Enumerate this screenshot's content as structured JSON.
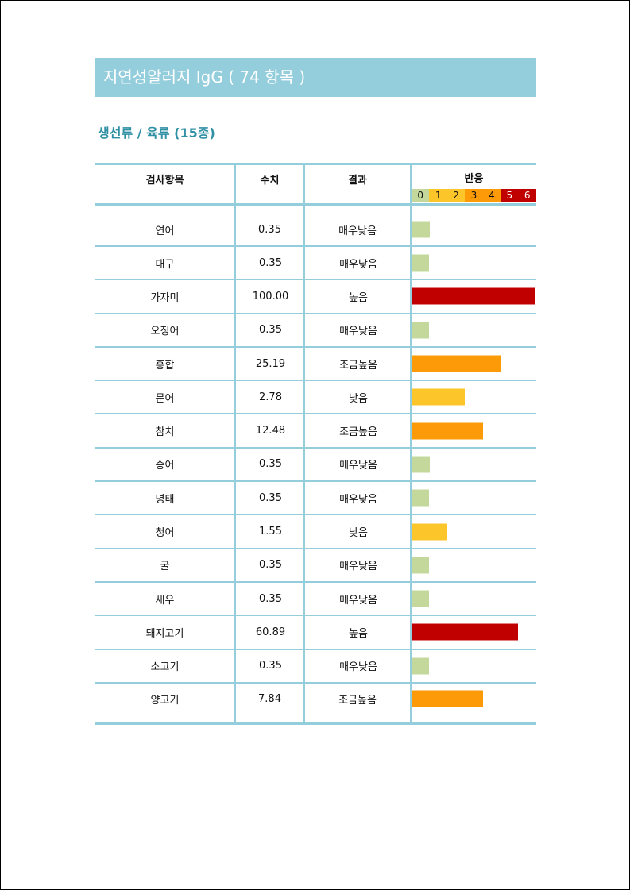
{
  "title": "지연성알러지 IgG ( 74 항목 )",
  "section": "생선류 / 육류 (15종)",
  "headers": {
    "item": "검사항목",
    "value": "수치",
    "result": "결과",
    "reaction": "반응"
  },
  "scale": [
    {
      "label": "0",
      "color": "#c5d89c"
    },
    {
      "label": "1",
      "color": "#fcc62a"
    },
    {
      "label": "2",
      "color": "#fcc62a"
    },
    {
      "label": "3",
      "color": "#fd9a07"
    },
    {
      "label": "4",
      "color": "#fd9a07"
    },
    {
      "label": "5",
      "color": "#c00000",
      "text": "#ffffff"
    },
    {
      "label": "6",
      "color": "#c00000",
      "text": "#ffffff"
    }
  ],
  "rows": [
    {
      "item": "연어",
      "value": "0.35",
      "result": "매우낮음",
      "level": 0.15,
      "color": "#c5d89c"
    },
    {
      "item": "대구",
      "value": "0.35",
      "result": "매우낮음",
      "level": 0.14,
      "color": "#c5d89c"
    },
    {
      "item": "가자미",
      "value": "100.00",
      "result": "높음",
      "level": 1.0,
      "color": "#c00000"
    },
    {
      "item": "오징어",
      "value": "0.35",
      "result": "매우낮음",
      "level": 0.14,
      "color": "#c5d89c"
    },
    {
      "item": "홍합",
      "value": "25.19",
      "result": "조금높음",
      "level": 0.72,
      "color": "#fd9a07"
    },
    {
      "item": "문어",
      "value": "2.78",
      "result": "낮음",
      "level": 0.43,
      "color": "#fcc62a"
    },
    {
      "item": "참치",
      "value": "12.48",
      "result": "조금높음",
      "level": 0.58,
      "color": "#fd9a07"
    },
    {
      "item": "송어",
      "value": "0.35",
      "result": "매우낮음",
      "level": 0.15,
      "color": "#c5d89c"
    },
    {
      "item": "명태",
      "value": "0.35",
      "result": "매우낮음",
      "level": 0.14,
      "color": "#c5d89c"
    },
    {
      "item": "청어",
      "value": "1.55",
      "result": "낮음",
      "level": 0.29,
      "color": "#fcc62a"
    },
    {
      "item": "굴",
      "value": "0.35",
      "result": "매우낮음",
      "level": 0.14,
      "color": "#c5d89c"
    },
    {
      "item": "새우",
      "value": "0.35",
      "result": "매우낮음",
      "level": 0.14,
      "color": "#c5d89c"
    },
    {
      "item": "돼지고기",
      "value": "60.89",
      "result": "높음",
      "level": 0.86,
      "color": "#c00000"
    },
    {
      "item": "소고기",
      "value": "0.35",
      "result": "매우낮음",
      "level": 0.14,
      "color": "#c5d89c"
    },
    {
      "item": "양고기",
      "value": "7.84",
      "result": "조금높음",
      "level": 0.58,
      "color": "#fd9a07"
    }
  ]
}
